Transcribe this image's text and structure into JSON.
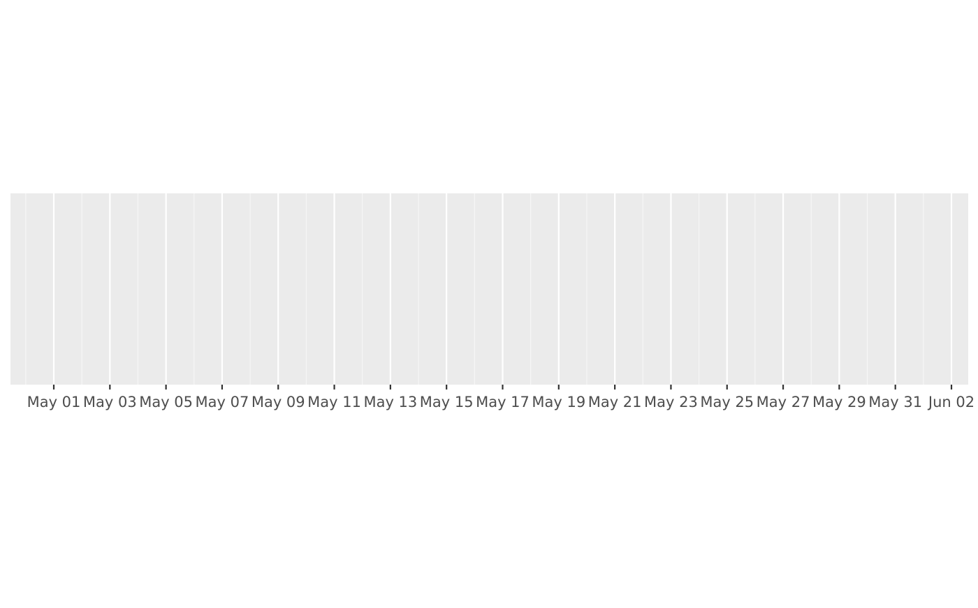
{
  "chart_data": {
    "type": "line",
    "title": "",
    "xlabel": "",
    "ylabel": "",
    "x_axis": {
      "scale": "date",
      "range": [
        "2024-04-29",
        "2024-06-02"
      ],
      "tick_labels": [
        "May 01",
        "May 03",
        "May 05",
        "May 07",
        "May 09",
        "May 11",
        "May 13",
        "May 15",
        "May 17",
        "May 19",
        "May 21",
        "May 23",
        "May 25",
        "May 27",
        "May 29",
        "May 31",
        "Jun 02"
      ]
    },
    "y_axis": {
      "visible": false
    },
    "grid": true,
    "series": []
  },
  "colors": {
    "panel_background": "#ebebeb",
    "grid_major": "#ffffff",
    "grid_minor": "#f7f7f7",
    "tick_label": "#4d4d4d",
    "tick_mark": "#333333"
  }
}
